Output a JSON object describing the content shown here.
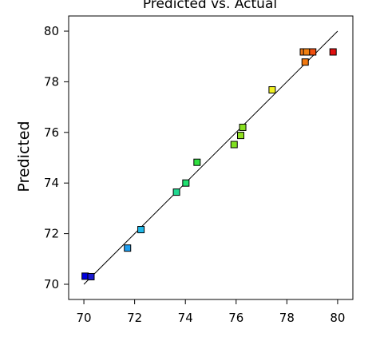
{
  "chart_data": {
    "type": "scatter",
    "title": "Predicted vs. Actual",
    "xlabel": "",
    "ylabel": "Predicted",
    "xlim": [
      69.4,
      80.6
    ],
    "ylim": [
      69.4,
      80.6
    ],
    "x_ticks": [
      70,
      72,
      74,
      76,
      78,
      80
    ],
    "y_ticks": [
      70,
      72,
      74,
      76,
      78,
      80
    ],
    "grid": false,
    "reference_line": {
      "from": [
        70,
        70
      ],
      "to": [
        80,
        80
      ]
    },
    "points": [
      {
        "x": 70.05,
        "y": 70.32,
        "color": "#0000e0"
      },
      {
        "x": 70.28,
        "y": 70.3,
        "color": "#1a1ad0"
      },
      {
        "x": 71.72,
        "y": 71.43,
        "color": "#1e9ef0"
      },
      {
        "x": 72.25,
        "y": 72.16,
        "color": "#20b8e8"
      },
      {
        "x": 73.65,
        "y": 73.64,
        "color": "#20d890"
      },
      {
        "x": 74.02,
        "y": 74.0,
        "color": "#20e070"
      },
      {
        "x": 74.46,
        "y": 74.82,
        "color": "#30e040"
      },
      {
        "x": 75.92,
        "y": 75.52,
        "color": "#80e020"
      },
      {
        "x": 76.18,
        "y": 75.88,
        "color": "#90e020"
      },
      {
        "x": 76.26,
        "y": 76.2,
        "color": "#88e020"
      },
      {
        "x": 77.42,
        "y": 77.68,
        "color": "#f0f020"
      },
      {
        "x": 78.72,
        "y": 78.78,
        "color": "#f07810"
      },
      {
        "x": 78.65,
        "y": 79.18,
        "color": "#f07818"
      },
      {
        "x": 78.78,
        "y": 79.18,
        "color": "#f08010"
      },
      {
        "x": 79.02,
        "y": 79.18,
        "color": "#f05010"
      },
      {
        "x": 79.82,
        "y": 79.18,
        "color": "#e01010"
      }
    ]
  }
}
